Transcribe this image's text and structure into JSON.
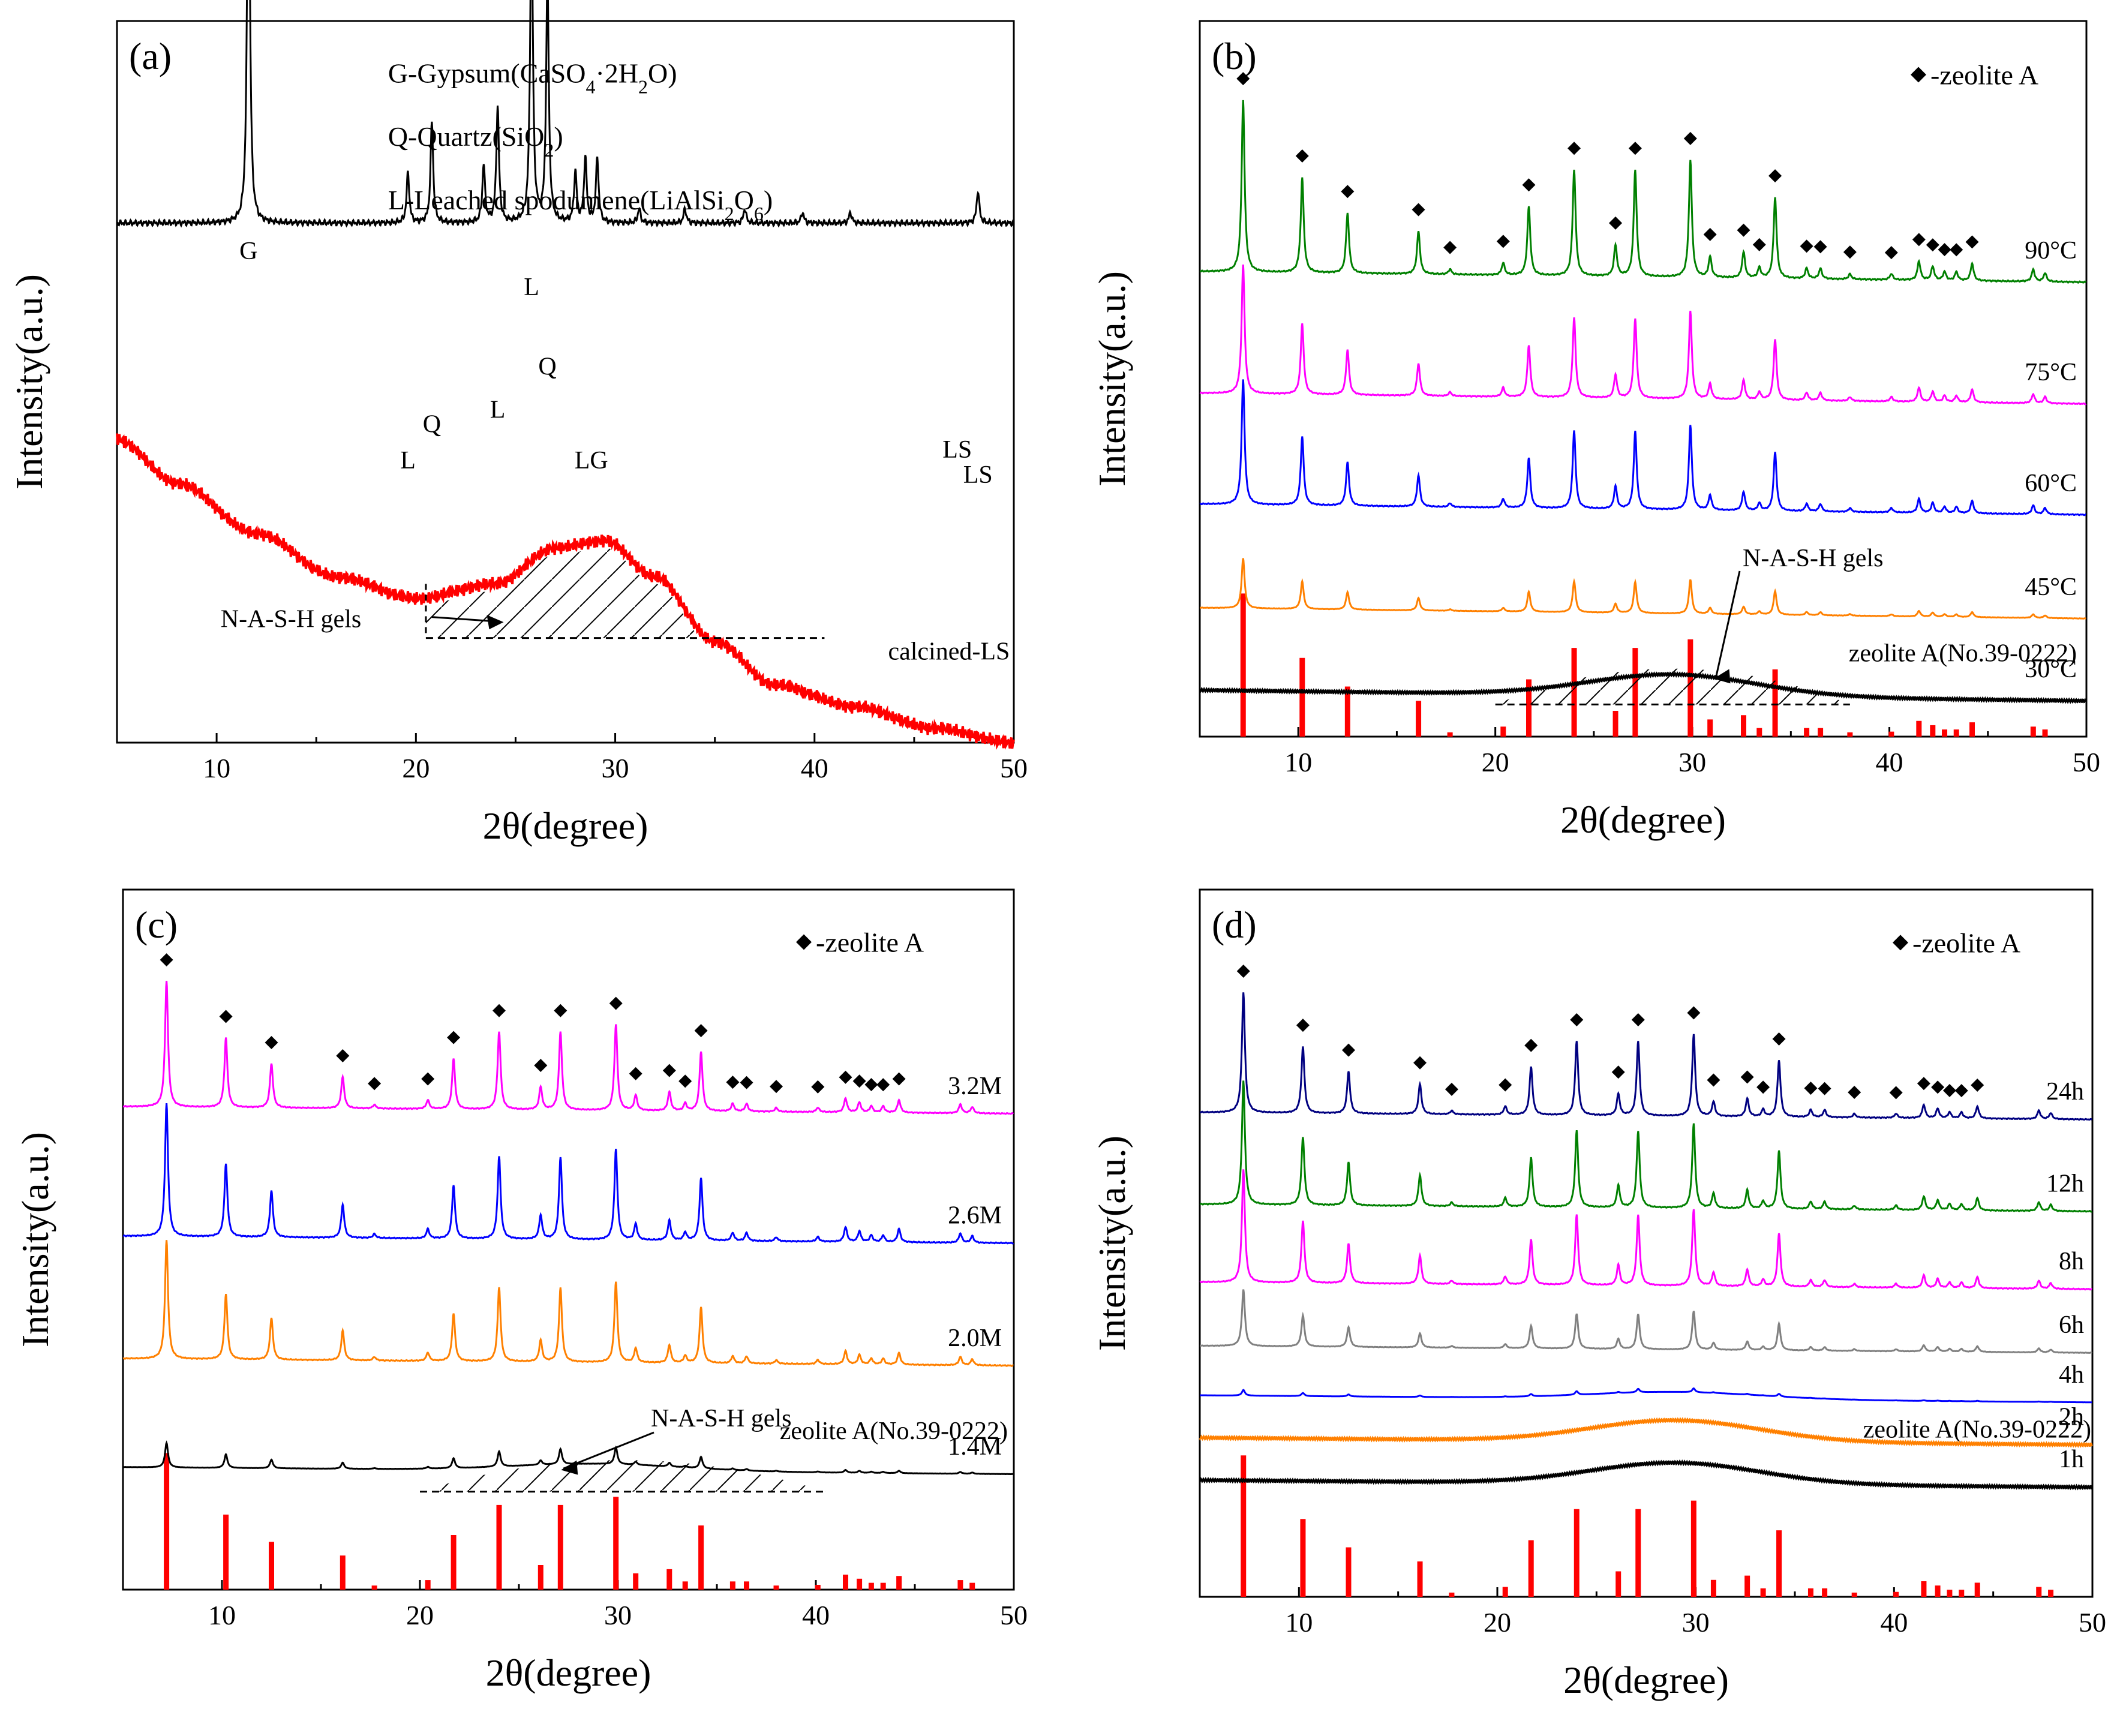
{
  "chart_data": [
    {
      "panel_label": "(a)",
      "type": "line",
      "xlabel": "2θ(degree)",
      "ylabel": "Intensity(a.u.)",
      "xlim": [
        5,
        50
      ],
      "xticks": [
        "10",
        "20",
        "30",
        "40",
        "50"
      ],
      "legend": [
        {
          "prefix": "G-Gypsum(CaSO",
          "sub1": "4",
          "mid": "·2H",
          "sub2": "2",
          "suffix": "O)"
        },
        {
          "prefix": "Q-Quartz(SiO",
          "sub1": "2",
          "mid": ")",
          "sub2": "",
          "suffix": ""
        },
        {
          "prefix": "L-Leached spodumene(LiAlSi",
          "sub1": "2",
          "mid": "O",
          "sub2": "6",
          "suffix": ")"
        }
      ],
      "series": [
        {
          "name": "LS",
          "color": "#000000",
          "kind": "pattern",
          "baseline": [
            [
              5,
              0.28
            ],
            [
              50,
              0.28
            ]
          ],
          "peaks": [
            [
              11.6,
              0.62
            ],
            [
              19.6,
              0.07
            ],
            [
              20.8,
              0.14
            ],
            [
              23.4,
              0.08
            ],
            [
              24.1,
              0.16
            ],
            [
              25.8,
              0.45
            ],
            [
              26.6,
              0.34
            ],
            [
              28.0,
              0.07
            ],
            [
              28.5,
              0.09
            ],
            [
              29.1,
              0.09
            ],
            [
              31.2,
              0.02
            ],
            [
              33.5,
              0.02
            ],
            [
              36.5,
              0.02
            ],
            [
              39.4,
              0.015
            ],
            [
              41.8,
              0.015
            ],
            [
              48.2,
              0.045
            ]
          ]
        },
        {
          "name": "calcined-LS",
          "color": "#ff0000",
          "kind": "broad",
          "baseline": [
            [
              5,
              0.58
            ],
            [
              8,
              0.64
            ],
            [
              12,
              0.71
            ],
            [
              16,
              0.77
            ],
            [
              20,
              0.8
            ],
            [
              24,
              0.78
            ],
            [
              27,
              0.73
            ],
            [
              29.5,
              0.72
            ],
            [
              32,
              0.77
            ],
            [
              35,
              0.86
            ],
            [
              38,
              0.92
            ],
            [
              42,
              0.95
            ],
            [
              46,
              0.98
            ],
            [
              50,
              1.0
            ]
          ]
        }
      ],
      "peak_labels": [
        {
          "text": "G",
          "x": 11.6
        },
        {
          "text": "L",
          "x": 19.6
        },
        {
          "text": "Q",
          "x": 20.8
        },
        {
          "text": "L",
          "x": 24.1
        },
        {
          "text": "L",
          "x": 25.8
        },
        {
          "text": "Q",
          "x": 26.6
        },
        {
          "text": "LG",
          "x": 28.8
        },
        {
          "text": "LS",
          "x": 48.2
        }
      ],
      "annotations": [
        {
          "text": "N-A-S-H  gels",
          "region": [
            20.5,
            34.5
          ]
        }
      ],
      "curve_labels": [
        "LS",
        "calcined-LS"
      ]
    },
    {
      "panel_label": "(b)",
      "type": "line",
      "xlabel": "2θ(degree)",
      "ylabel": "Intensity(a.u.)",
      "xlim": [
        5,
        50
      ],
      "xticks": [
        "10",
        "20",
        "30",
        "40",
        "50"
      ],
      "legend_text": "-zeolite A",
      "series": [
        {
          "name": "90°C",
          "color": "#008000",
          "offset": 0.35,
          "scale": 0.24,
          "markers": true
        },
        {
          "name": "75°C",
          "color": "#ff00ff",
          "offset": 0.52,
          "scale": 0.18
        },
        {
          "name": "60°C",
          "color": "#0000ff",
          "offset": 0.675,
          "scale": 0.175
        },
        {
          "name": "45°C",
          "color": "#ff8000",
          "offset": 0.82,
          "scale": 0.07
        },
        {
          "name": "30°C",
          "color": "#000000",
          "kind": "broad",
          "offset": 0.935
        }
      ],
      "reference": {
        "name": "zeolite A(No.39-0222)",
        "color": "#ff0000",
        "height": 0.2
      },
      "annotations": [
        {
          "text": "N-A-S-H gels",
          "region": [
            20.0,
            38.0
          ]
        }
      ]
    },
    {
      "panel_label": "(c)",
      "type": "line",
      "xlabel": "2θ(degree)",
      "ylabel": "Intensity(a.u.)",
      "xlim": [
        5,
        50
      ],
      "xticks": [
        "10",
        "20",
        "30",
        "40",
        "50"
      ],
      "legend_text": "-zeolite A",
      "series": [
        {
          "name": "3.2M",
          "color": "#ff00ff",
          "offset": 0.31,
          "scale": 0.18,
          "markers": true
        },
        {
          "name": "2.6M",
          "color": "#0000ff",
          "offset": 0.495,
          "scale": 0.19
        },
        {
          "name": "2.0M",
          "color": "#ff8000",
          "offset": 0.67,
          "scale": 0.17
        },
        {
          "name": "1.4M",
          "color": "#000000",
          "offset": 0.825,
          "scale": 0.035
        }
      ],
      "reference": {
        "name": "zeolite A(No.39-0222)",
        "color": "#ff0000",
        "height": 0.195
      },
      "annotations": [
        {
          "text": "N-A-S-H gels",
          "region": [
            20.0,
            40.5
          ]
        }
      ]
    },
    {
      "panel_label": "(d)",
      "type": "line",
      "xlabel": "2θ(degree)",
      "ylabel": "Intensity(a.u.)",
      "xlim": [
        5,
        50
      ],
      "xticks": [
        "10",
        "20",
        "30",
        "40",
        "50"
      ],
      "legend_text": "-zeolite A",
      "series": [
        {
          "name": "24h",
          "color": "#000080",
          "offset": 0.315,
          "scale": 0.17,
          "markers": true
        },
        {
          "name": "12h",
          "color": "#008000",
          "offset": 0.445,
          "scale": 0.175
        },
        {
          "name": "8h",
          "color": "#ff00ff",
          "offset": 0.555,
          "scale": 0.16
        },
        {
          "name": "6h",
          "color": "#808080",
          "offset": 0.645,
          "scale": 0.08
        },
        {
          "name": "4h",
          "color": "#0000ff",
          "offset": 0.715,
          "scale": 0.008
        },
        {
          "name": "2h",
          "color": "#ff8000",
          "kind": "broad",
          "offset": 0.775
        },
        {
          "name": "1h",
          "color": "#000000",
          "kind": "broad",
          "offset": 0.835
        }
      ],
      "reference": {
        "name": "zeolite A(No.39-0222)",
        "color": "#ff0000",
        "height": 0.2
      }
    }
  ],
  "zeolite_peaks": [
    [
      7.2,
      1.0
    ],
    [
      10.2,
      0.55
    ],
    [
      12.5,
      0.35
    ],
    [
      16.1,
      0.25
    ],
    [
      17.7,
      0.03
    ],
    [
      20.4,
      0.07
    ],
    [
      21.7,
      0.4
    ],
    [
      24.0,
      0.62
    ],
    [
      26.1,
      0.18
    ],
    [
      27.1,
      0.62
    ],
    [
      29.9,
      0.68
    ],
    [
      30.9,
      0.12
    ],
    [
      32.6,
      0.15
    ],
    [
      33.4,
      0.06
    ],
    [
      34.2,
      0.47
    ],
    [
      35.8,
      0.06
    ],
    [
      36.5,
      0.06
    ],
    [
      38.0,
      0.03
    ],
    [
      40.1,
      0.035
    ],
    [
      41.5,
      0.11
    ],
    [
      42.2,
      0.08
    ],
    [
      42.8,
      0.05
    ],
    [
      43.4,
      0.05
    ],
    [
      44.2,
      0.1
    ],
    [
      47.3,
      0.07
    ],
    [
      47.9,
      0.05
    ]
  ],
  "marker_peaks": [
    7.2,
    10.2,
    12.5,
    16.1,
    17.7,
    20.4,
    21.7,
    24.0,
    26.1,
    27.1,
    29.9,
    30.9,
    32.6,
    33.4,
    34.2,
    35.8,
    36.5,
    38.0,
    40.1,
    41.5,
    42.2,
    42.8,
    43.4,
    44.2
  ],
  "broad_hump": {
    "center": 29.0,
    "width": 6.0,
    "amp": 0.03
  }
}
